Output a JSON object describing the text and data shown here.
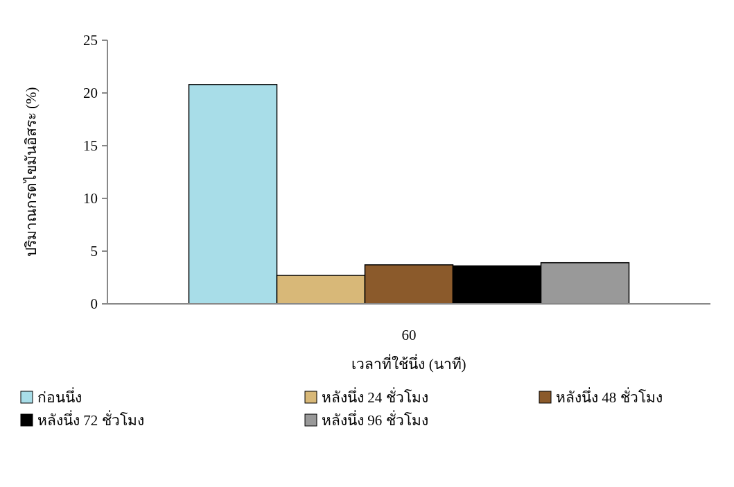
{
  "chart_data": {
    "type": "bar",
    "xlabel": "เวลาที่ใช้นึ่ง (นาที)",
    "ylabel": "ปริมาณกรดไขมันอิสระ (%)",
    "categories": [
      "60"
    ],
    "series": [
      {
        "name": "ก่อนนึ่ง",
        "color": "#a8dde8",
        "values": [
          20.8
        ]
      },
      {
        "name": "หลังนึ่ง 24 ชั่วโมง",
        "color": "#d8b878",
        "values": [
          2.7
        ]
      },
      {
        "name": "หลังนึ่ง 48 ชั่วโมง",
        "color": "#8b5a2b",
        "values": [
          3.7
        ]
      },
      {
        "name": "หลังนึ่ง 72 ชั่วโมง",
        "color": "#000000",
        "values": [
          3.6
        ]
      },
      {
        "name": "หลังนึ่ง 96 ชั่วโมง",
        "color": "#999999",
        "values": [
          3.9
        ]
      }
    ],
    "ylim": [
      0,
      25
    ],
    "yticks": [
      0,
      5,
      10,
      15,
      20,
      25
    ],
    "legend": "bottom"
  }
}
